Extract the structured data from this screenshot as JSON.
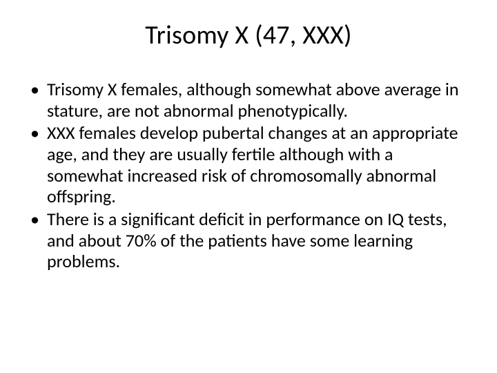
{
  "slide": {
    "title": "Trisomy X (47, XXX)",
    "bullets": [
      "Trisomy X females, although somewhat above average in stature, are not abnormal phenotypically.",
      "XXX females develop pubertal changes at an appropriate age, and they are usually fertile although with a somewhat increased risk of chromosomally abnormal offspring.",
      "There is a significant deficit in performance on IQ tests, and about 70% of the patients have some learning problems."
    ],
    "background_color": "#ffffff",
    "text_color": "#000000",
    "title_fontsize": 38,
    "body_fontsize": 26,
    "font_family": "Calibri"
  }
}
